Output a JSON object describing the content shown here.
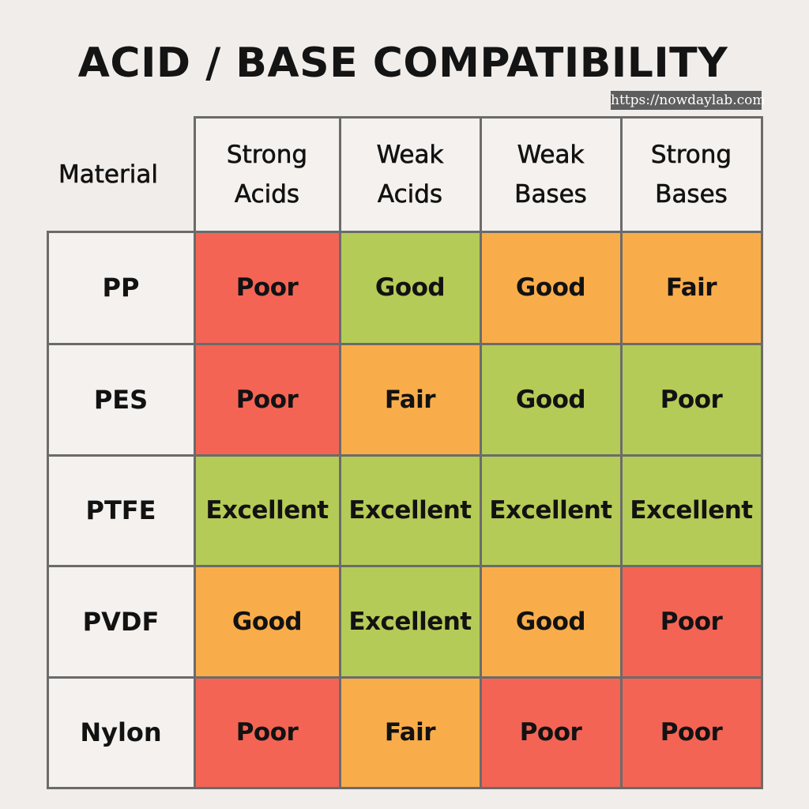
{
  "title": "ACID / BASE COMPATIBILITY",
  "watermark": "https://nowdaylab.com",
  "colors": {
    "Poor": "#f46455",
    "Fair": "#f9ad4a",
    "Good": "#f9ad4a",
    "Excellent": "#b5cb57",
    "good_green": "#b5cb57",
    "header_bg": "#f4f1ee",
    "page_bg": "#f1edea",
    "grid": "#6b6b6b"
  },
  "chart_data": {
    "type": "table",
    "title": "ACID / BASE COMPATIBILITY",
    "row_header": "Material",
    "columns": [
      [
        "Strong",
        "Acids"
      ],
      [
        "Weak",
        "Acids"
      ],
      [
        "Weak",
        "Bases"
      ],
      [
        "Strong",
        "Bases"
      ]
    ],
    "rows": [
      {
        "material": "PP",
        "values": [
          "Poor",
          "Good",
          "Good",
          "Fair"
        ],
        "fills": [
          "Poor",
          "Excellent",
          "Fair",
          "Fair"
        ]
      },
      {
        "material": "PES",
        "values": [
          "Poor",
          "Fair",
          "Good",
          "Poor"
        ],
        "fills": [
          "Poor",
          "Fair",
          "Excellent",
          "Excellent"
        ]
      },
      {
        "material": "PTFE",
        "values": [
          "Excellent",
          "Excellent",
          "Excellent",
          "Excellent"
        ],
        "fills": [
          "Excellent",
          "Excellent",
          "Excellent",
          "Excellent"
        ]
      },
      {
        "material": "PVDF",
        "values": [
          "Good",
          "Excellent",
          "Good",
          "Poor"
        ],
        "fills": [
          "Fair",
          "Excellent",
          "Fair",
          "Poor"
        ]
      },
      {
        "material": "Nylon",
        "values": [
          "Poor",
          "Fair",
          "Poor",
          "Poor"
        ],
        "fills": [
          "Poor",
          "Fair",
          "Poor",
          "Poor"
        ]
      }
    ]
  }
}
